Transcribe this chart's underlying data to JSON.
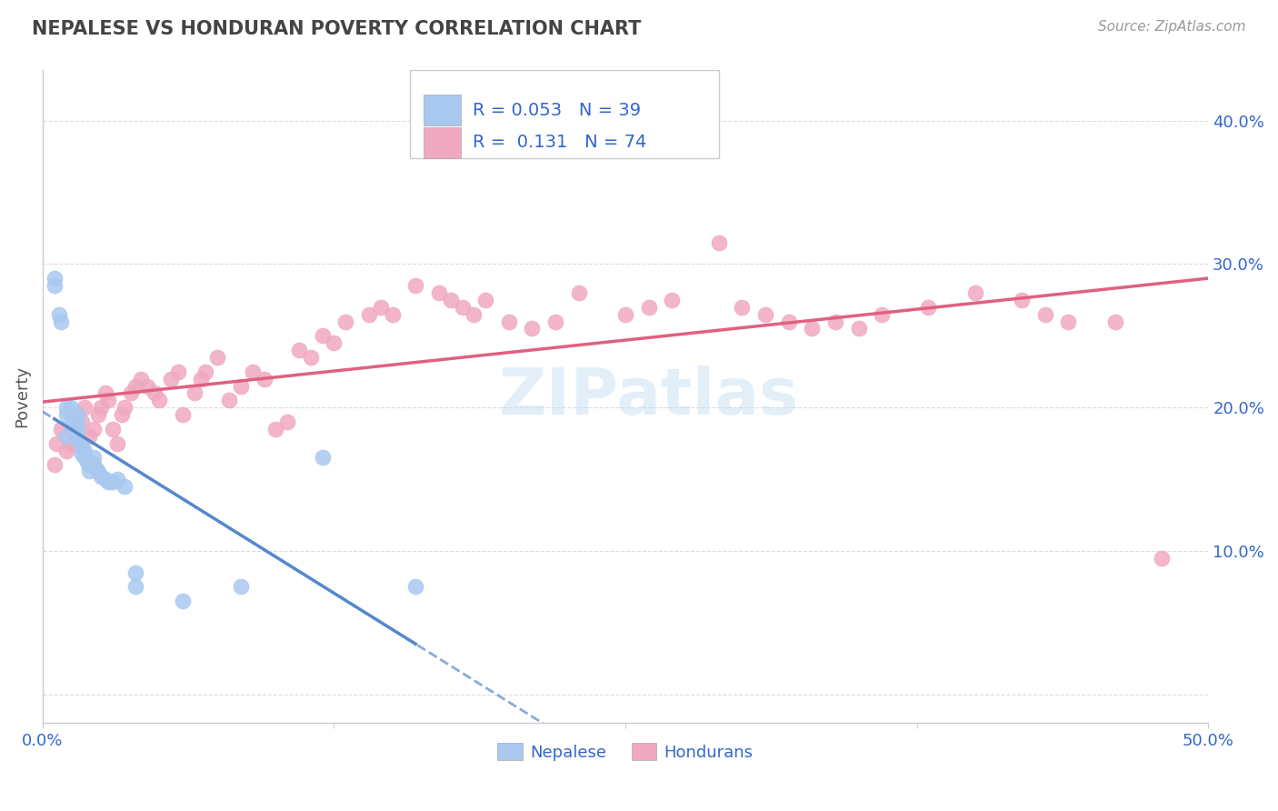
{
  "title": "NEPALESE VS HONDURAN POVERTY CORRELATION CHART",
  "source": "Source: ZipAtlas.com",
  "ylabel": "Poverty",
  "xlim": [
    0.0,
    0.5
  ],
  "ylim": [
    -0.02,
    0.435
  ],
  "yticks": [
    0.0,
    0.1,
    0.2,
    0.3,
    0.4
  ],
  "ytick_labels": [
    "",
    "10.0%",
    "20.0%",
    "30.0%",
    "40.0%"
  ],
  "xticks": [
    0.0,
    0.125,
    0.25,
    0.375,
    0.5
  ],
  "xtick_labels": [
    "0.0%",
    "",
    "",
    "",
    "50.0%"
  ],
  "nepalese_R": 0.053,
  "nepalese_N": 39,
  "honduran_R": 0.131,
  "honduran_N": 74,
  "nepalese_color": "#a8c8f0",
  "honduran_color": "#f0a8c0",
  "nepalese_line_color": "#5588cc",
  "honduran_line_color": "#e06080",
  "background_color": "#ffffff",
  "watermark": "ZIPatlas",
  "title_color": "#444444",
  "legend_text_color": "#3366cc",
  "nepalese_x": [
    0.005,
    0.005,
    0.007,
    0.008,
    0.01,
    0.01,
    0.01,
    0.012,
    0.012,
    0.013,
    0.013,
    0.015,
    0.015,
    0.015,
    0.015,
    0.016,
    0.017,
    0.017,
    0.018,
    0.018,
    0.019,
    0.02,
    0.02,
    0.022,
    0.022,
    0.023,
    0.024,
    0.025,
    0.027,
    0.028,
    0.03,
    0.032,
    0.035,
    0.04,
    0.04,
    0.06,
    0.085,
    0.12,
    0.16
  ],
  "nepalese_y": [
    0.29,
    0.285,
    0.265,
    0.26,
    0.2,
    0.195,
    0.18,
    0.2,
    0.195,
    0.19,
    0.185,
    0.195,
    0.19,
    0.185,
    0.18,
    0.175,
    0.172,
    0.168,
    0.17,
    0.165,
    0.162,
    0.16,
    0.156,
    0.165,
    0.16,
    0.157,
    0.155,
    0.152,
    0.15,
    0.148,
    0.148,
    0.15,
    0.145,
    0.085,
    0.075,
    0.065,
    0.075,
    0.165,
    0.075
  ],
  "honduran_x": [
    0.005,
    0.006,
    0.008,
    0.01,
    0.012,
    0.014,
    0.015,
    0.017,
    0.018,
    0.02,
    0.022,
    0.024,
    0.025,
    0.027,
    0.028,
    0.03,
    0.032,
    0.034,
    0.035,
    0.038,
    0.04,
    0.042,
    0.045,
    0.048,
    0.05,
    0.055,
    0.058,
    0.06,
    0.065,
    0.068,
    0.07,
    0.075,
    0.08,
    0.085,
    0.09,
    0.095,
    0.1,
    0.105,
    0.11,
    0.115,
    0.12,
    0.125,
    0.13,
    0.14,
    0.145,
    0.15,
    0.16,
    0.17,
    0.175,
    0.18,
    0.185,
    0.19,
    0.2,
    0.21,
    0.22,
    0.23,
    0.25,
    0.26,
    0.27,
    0.29,
    0.3,
    0.31,
    0.32,
    0.33,
    0.34,
    0.35,
    0.36,
    0.38,
    0.4,
    0.42,
    0.43,
    0.44,
    0.46,
    0.48
  ],
  "honduran_y": [
    0.16,
    0.175,
    0.185,
    0.17,
    0.175,
    0.175,
    0.185,
    0.19,
    0.2,
    0.18,
    0.185,
    0.195,
    0.2,
    0.21,
    0.205,
    0.185,
    0.175,
    0.195,
    0.2,
    0.21,
    0.215,
    0.22,
    0.215,
    0.21,
    0.205,
    0.22,
    0.225,
    0.195,
    0.21,
    0.22,
    0.225,
    0.235,
    0.205,
    0.215,
    0.225,
    0.22,
    0.185,
    0.19,
    0.24,
    0.235,
    0.25,
    0.245,
    0.26,
    0.265,
    0.27,
    0.265,
    0.285,
    0.28,
    0.275,
    0.27,
    0.265,
    0.275,
    0.26,
    0.255,
    0.26,
    0.28,
    0.265,
    0.27,
    0.275,
    0.315,
    0.27,
    0.265,
    0.26,
    0.255,
    0.26,
    0.255,
    0.265,
    0.27,
    0.28,
    0.275,
    0.265,
    0.26,
    0.26,
    0.095
  ]
}
